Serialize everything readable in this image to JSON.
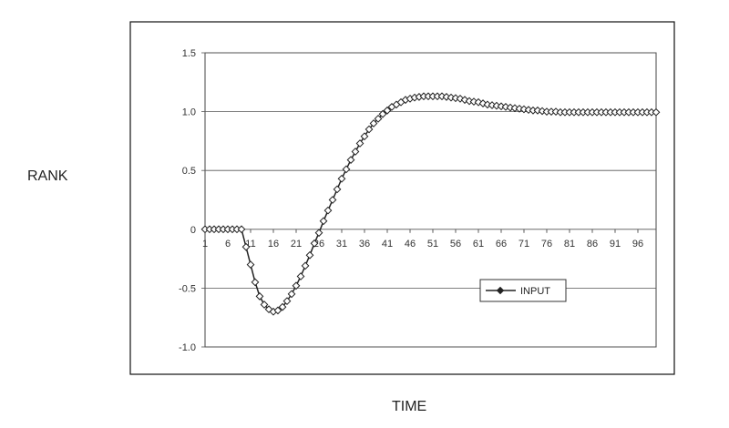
{
  "chart_data": {
    "type": "line",
    "title": "",
    "xlabel": "TIME",
    "ylabel": "RANK",
    "ylim": [
      -1.0,
      1.5
    ],
    "yticks": [
      1.5,
      1.0,
      0.5,
      0,
      -0.5,
      -1.0
    ],
    "ytick_labels": [
      "1.5",
      "1.0",
      "0.5",
      "0",
      "-0.5",
      "-1.0"
    ],
    "xlim": [
      1,
      100
    ],
    "xticks": [
      1,
      6,
      11,
      16,
      21,
      26,
      31,
      36,
      41,
      46,
      51,
      56,
      61,
      66,
      71,
      76,
      81,
      86,
      91,
      96
    ],
    "xtick_labels": [
      "1",
      "6",
      "11",
      "16",
      "21",
      "26",
      "31",
      "36",
      "41",
      "46",
      "51",
      "56",
      "61",
      "66",
      "71",
      "76",
      "81",
      "86",
      "91",
      "96"
    ],
    "grid": true,
    "legend": "lower-right",
    "series": [
      {
        "name": "INPUT",
        "color": "#222222",
        "marker": "diamond",
        "x": [
          1,
          2,
          3,
          4,
          5,
          6,
          7,
          8,
          9,
          10,
          11,
          12,
          13,
          14,
          15,
          16,
          17,
          18,
          19,
          20,
          21,
          22,
          23,
          24,
          25,
          26,
          27,
          28,
          29,
          30,
          31,
          32,
          33,
          34,
          35,
          36,
          37,
          38,
          39,
          40,
          41,
          42,
          43,
          44,
          45,
          46,
          47,
          48,
          49,
          50,
          51,
          52,
          53,
          54,
          55,
          56,
          57,
          58,
          59,
          60,
          61,
          62,
          63,
          64,
          65,
          66,
          67,
          68,
          69,
          70,
          71,
          72,
          73,
          74,
          75,
          76,
          77,
          78,
          79,
          80,
          81,
          82,
          83,
          84,
          85,
          86,
          87,
          88,
          89,
          90,
          91,
          92,
          93,
          94,
          95,
          96,
          97,
          98,
          99,
          100
        ],
        "values": [
          0,
          0,
          0,
          0,
          0,
          0,
          0,
          0,
          0,
          -0.15,
          -0.3,
          -0.45,
          -0.57,
          -0.64,
          -0.68,
          -0.7,
          -0.69,
          -0.66,
          -0.61,
          -0.55,
          -0.48,
          -0.4,
          -0.31,
          -0.22,
          -0.12,
          -0.03,
          0.07,
          0.16,
          0.25,
          0.34,
          0.43,
          0.51,
          0.59,
          0.66,
          0.73,
          0.79,
          0.85,
          0.9,
          0.94,
          0.98,
          1.01,
          1.04,
          1.06,
          1.08,
          1.1,
          1.11,
          1.12,
          1.125,
          1.13,
          1.13,
          1.13,
          1.13,
          1.13,
          1.125,
          1.12,
          1.115,
          1.11,
          1.1,
          1.09,
          1.085,
          1.08,
          1.07,
          1.06,
          1.055,
          1.05,
          1.045,
          1.04,
          1.035,
          1.03,
          1.025,
          1.02,
          1.015,
          1.01,
          1.01,
          1.005,
          1.0,
          1.0,
          1.0,
          0.995,
          0.995,
          0.995,
          0.995,
          0.995,
          0.995,
          0.995,
          0.995,
          0.995,
          0.995,
          0.995,
          0.995,
          0.995,
          0.995,
          0.995,
          0.995,
          0.995,
          0.995,
          0.995,
          0.995,
          0.995,
          0.995
        ]
      }
    ]
  }
}
